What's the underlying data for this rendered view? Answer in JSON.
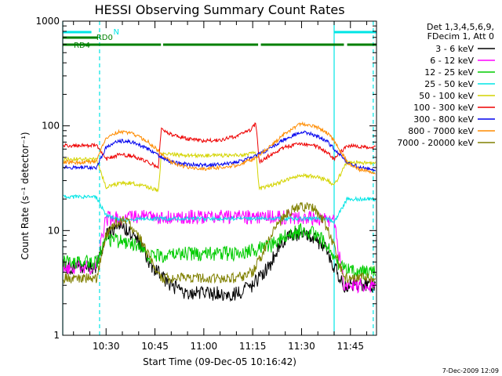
{
  "chart_data": {
    "type": "line",
    "title": "HESSI Observing Summary Count Rates",
    "xlabel": "Start Time (09-Dec-05 10:16:42)",
    "ylabel": "Count Rate (s⁻¹ detector⁻¹)",
    "yscale": "log",
    "ylim": [
      1,
      1000
    ],
    "xlim": [
      "10:16:42",
      "11:53:00"
    ],
    "x_ticks": [
      "10:30",
      "10:45",
      "11:00",
      "11:15",
      "11:30",
      "11:45"
    ],
    "y_ticks": [
      "1",
      "10",
      "100",
      "1000"
    ],
    "legend_header": [
      "Det 1,3,4,5,6,9,",
      "FDecim 1, Att 0"
    ],
    "legend_placement": "right",
    "footer_date": "7-Dec-2009 12:09",
    "series": [
      {
        "name": "3 - 6 keV",
        "color": "#000000",
        "points": [
          [
            "10:17",
            4.5
          ],
          [
            "10:24",
            4.5
          ],
          [
            "10:27",
            4.5
          ],
          [
            "10:30",
            9
          ],
          [
            "10:33",
            11
          ],
          [
            "10:35",
            11
          ],
          [
            "10:37",
            10
          ],
          [
            "10:41",
            7
          ],
          [
            "10:44",
            4.5
          ],
          [
            "10:50",
            3
          ],
          [
            "10:55",
            2.5
          ],
          [
            "11:00",
            2.5
          ],
          [
            "11:05",
            2.5
          ],
          [
            "11:10",
            2.5
          ],
          [
            "11:15",
            3
          ],
          [
            "11:20",
            4.5
          ],
          [
            "11:23",
            7
          ],
          [
            "11:27",
            9
          ],
          [
            "11:30",
            9.5
          ],
          [
            "11:33",
            9
          ],
          [
            "11:37",
            7
          ],
          [
            "11:40",
            4.5
          ],
          [
            "11:43",
            3
          ],
          [
            "11:50",
            3
          ],
          [
            "11:53",
            3
          ]
        ]
      },
      {
        "name": "6 - 12 keV",
        "color": "#ff00ff",
        "points": [
          [
            "10:17",
            4.5
          ],
          [
            "10:24",
            4.5
          ],
          [
            "10:27",
            4.5
          ],
          [
            "10:30",
            13
          ],
          [
            "10:40",
            13.5
          ],
          [
            "10:45",
            13.5
          ],
          [
            "11:00",
            13.5
          ],
          [
            "11:10",
            13.5
          ],
          [
            "11:18",
            13.5
          ],
          [
            "11:25",
            13.5
          ],
          [
            "11:35",
            13
          ],
          [
            "11:40",
            12
          ],
          [
            "11:43",
            3
          ],
          [
            "11:50",
            3
          ],
          [
            "11:53",
            3
          ]
        ]
      },
      {
        "name": "12 - 25 keV",
        "color": "#00cc00",
        "points": [
          [
            "10:17",
            5
          ],
          [
            "10:24",
            5
          ],
          [
            "10:27",
            5
          ],
          [
            "10:30",
            8
          ],
          [
            "10:35",
            8
          ],
          [
            "10:40",
            7
          ],
          [
            "10:43",
            5.5
          ],
          [
            "10:50",
            6
          ],
          [
            "11:00",
            6
          ],
          [
            "11:10",
            6
          ],
          [
            "11:15",
            6.5
          ],
          [
            "11:20",
            7
          ],
          [
            "11:25",
            9
          ],
          [
            "11:30",
            10
          ],
          [
            "11:35",
            9
          ],
          [
            "11:38",
            7
          ],
          [
            "11:41",
            5
          ],
          [
            "11:45",
            4
          ],
          [
            "11:50",
            4
          ],
          [
            "11:53",
            4
          ]
        ]
      },
      {
        "name": "25 - 50 keV",
        "color": "#00e5e5",
        "points": [
          [
            "10:17",
            21
          ],
          [
            "10:24",
            21
          ],
          [
            "10:27",
            21
          ],
          [
            "10:30",
            14
          ],
          [
            "10:33",
            13
          ],
          [
            "10:36",
            12.5
          ],
          [
            "10:40",
            13
          ],
          [
            "10:44",
            13
          ],
          [
            "10:47",
            13
          ],
          [
            "11:00",
            13
          ],
          [
            "11:15",
            13
          ],
          [
            "11:20",
            13
          ],
          [
            "11:30",
            13
          ],
          [
            "11:38",
            13
          ],
          [
            "11:40",
            12
          ],
          [
            "11:44",
            20
          ],
          [
            "11:50",
            20
          ],
          [
            "11:53",
            20
          ]
        ]
      },
      {
        "name": "50 - 100 keV",
        "color": "#d4d400",
        "points": [
          [
            "10:17",
            48
          ],
          [
            "10:24",
            48
          ],
          [
            "10:27",
            48
          ],
          [
            "10:30",
            26
          ],
          [
            "10:34",
            28
          ],
          [
            "10:38",
            28.5
          ],
          [
            "10:43",
            26
          ],
          [
            "10:46",
            24
          ],
          [
            "10:47",
            54
          ],
          [
            "10:55",
            52
          ],
          [
            "11:05",
            52
          ],
          [
            "11:12",
            53
          ],
          [
            "11:16",
            55
          ],
          [
            "11:17",
            25
          ],
          [
            "11:22",
            28
          ],
          [
            "11:30",
            34
          ],
          [
            "11:34",
            33
          ],
          [
            "11:38",
            30
          ],
          [
            "11:40",
            27
          ],
          [
            "11:44",
            45
          ],
          [
            "11:50",
            44
          ],
          [
            "11:53",
            44
          ]
        ]
      },
      {
        "name": "100 - 300 keV",
        "color": "#ee0000",
        "points": [
          [
            "10:17",
            65
          ],
          [
            "10:24",
            65
          ],
          [
            "10:27",
            65
          ],
          [
            "10:30",
            48
          ],
          [
            "10:34",
            53
          ],
          [
            "10:38",
            52
          ],
          [
            "10:43",
            45
          ],
          [
            "10:46",
            40
          ],
          [
            "10:47",
            95
          ],
          [
            "10:50",
            82
          ],
          [
            "10:55",
            75
          ],
          [
            "11:00",
            72
          ],
          [
            "11:05",
            73
          ],
          [
            "11:10",
            80
          ],
          [
            "11:14",
            90
          ],
          [
            "11:16",
            105
          ],
          [
            "11:17",
            45
          ],
          [
            "11:20",
            52
          ],
          [
            "11:25",
            63
          ],
          [
            "11:30",
            68
          ],
          [
            "11:34",
            65
          ],
          [
            "11:38",
            55
          ],
          [
            "11:40",
            48
          ],
          [
            "11:44",
            65
          ],
          [
            "11:48",
            63
          ],
          [
            "11:53",
            62
          ]
        ]
      },
      {
        "name": "300 - 800 keV",
        "color": "#0000ee",
        "points": [
          [
            "10:17",
            40
          ],
          [
            "10:24",
            40
          ],
          [
            "10:27",
            40
          ],
          [
            "10:30",
            62
          ],
          [
            "10:34",
            72
          ],
          [
            "10:38",
            70
          ],
          [
            "10:43",
            60
          ],
          [
            "10:46",
            52
          ],
          [
            "10:50",
            45
          ],
          [
            "10:55",
            43
          ],
          [
            "11:00",
            42
          ],
          [
            "11:05",
            43
          ],
          [
            "11:10",
            45
          ],
          [
            "11:15",
            50
          ],
          [
            "11:20",
            60
          ],
          [
            "11:25",
            75
          ],
          [
            "11:30",
            88
          ],
          [
            "11:34",
            82
          ],
          [
            "11:38",
            70
          ],
          [
            "11:40",
            60
          ],
          [
            "11:44",
            45
          ],
          [
            "11:48",
            40
          ],
          [
            "11:53",
            38
          ]
        ]
      },
      {
        "name": "800 - 7000 keV",
        "color": "#ff8c00",
        "points": [
          [
            "10:17",
            45
          ],
          [
            "10:24",
            45
          ],
          [
            "10:27",
            45
          ],
          [
            "10:30",
            78
          ],
          [
            "10:34",
            88
          ],
          [
            "10:38",
            85
          ],
          [
            "10:43",
            70
          ],
          [
            "10:46",
            58
          ],
          [
            "10:50",
            45
          ],
          [
            "10:55",
            40
          ],
          [
            "11:00",
            39
          ],
          [
            "11:05",
            40
          ],
          [
            "11:10",
            42
          ],
          [
            "11:15",
            48
          ],
          [
            "11:20",
            62
          ],
          [
            "11:25",
            85
          ],
          [
            "11:30",
            105
          ],
          [
            "11:34",
            100
          ],
          [
            "11:38",
            85
          ],
          [
            "11:40",
            72
          ],
          [
            "11:44",
            45
          ],
          [
            "11:48",
            38
          ],
          [
            "11:53",
            36
          ]
        ]
      },
      {
        "name": "7000 - 20000 keV",
        "color": "#808000",
        "points": [
          [
            "10:17",
            3.5
          ],
          [
            "10:24",
            3.5
          ],
          [
            "10:27",
            3.5
          ],
          [
            "10:30",
            9
          ],
          [
            "10:33",
            12
          ],
          [
            "10:36",
            12.5
          ],
          [
            "10:40",
            9
          ],
          [
            "10:44",
            5
          ],
          [
            "10:47",
            3.5
          ],
          [
            "10:50",
            3.5
          ],
          [
            "11:00",
            3.5
          ],
          [
            "11:10",
            3.5
          ],
          [
            "11:15",
            4
          ],
          [
            "11:18",
            6
          ],
          [
            "11:22",
            11
          ],
          [
            "11:26",
            15
          ],
          [
            "11:30",
            17
          ],
          [
            "11:34",
            16
          ],
          [
            "11:37",
            12
          ],
          [
            "11:40",
            7
          ],
          [
            "11:43",
            3.5
          ],
          [
            "11:50",
            3.5
          ],
          [
            "11:53",
            3.5
          ]
        ]
      }
    ],
    "annotations": {
      "N": {
        "label": "N",
        "color": "#00e5e5",
        "segments": [
          [
            "10:16:42",
            "10:25:30"
          ],
          [
            "11:40:00",
            "11:53:00"
          ]
        ]
      },
      "RD0": {
        "label": "RD0",
        "color": "#008000",
        "segments": [
          [
            "10:16:42",
            "10:27:30"
          ]
        ]
      },
      "RD4": {
        "label": "RD4",
        "color": "#008000",
        "segments": [
          [
            "10:16:42",
            "10:46:50"
          ],
          [
            "10:47:30",
            "11:16:40"
          ],
          [
            "11:17:30",
            "11:43:00"
          ],
          [
            "11:44:00",
            "11:53:00"
          ]
        ]
      },
      "vlines_solid": [
        "10:16:42",
        "11:40:00"
      ],
      "vlines_dashed": [
        "10:28:00",
        "11:52:00"
      ],
      "vline_color": "#00e5e5"
    }
  }
}
